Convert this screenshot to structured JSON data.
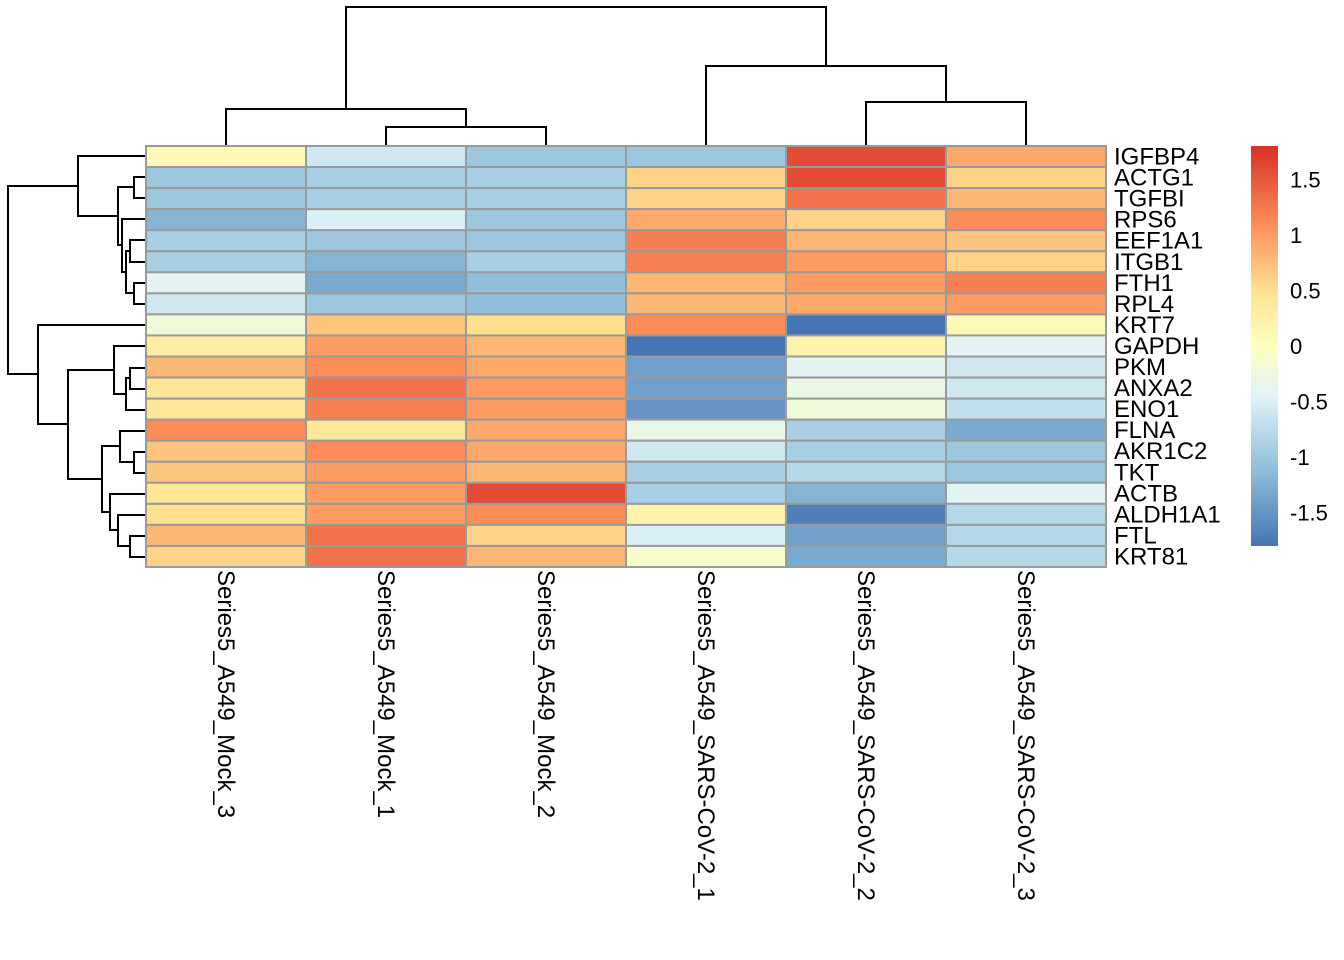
{
  "chart_data": {
    "type": "heatmap",
    "title": "",
    "columns": [
      "Series5_A549_Mock_3",
      "Series5_A549_Mock_1",
      "Series5_A549_Mock_2",
      "Series5_A549_SARS-CoV-2_1",
      "Series5_A549_SARS-CoV-2_2",
      "Series5_A549_SARS-CoV-2_3"
    ],
    "rows": [
      "IGFBP4",
      "ACTG1",
      "TGFBI",
      "RPS6",
      "EEF1A1",
      "ITGB1",
      "FTH1",
      "RPL4",
      "KRT7",
      "GAPDH",
      "PKM",
      "ANXA2",
      "ENO1",
      "FLNA",
      "AKR1C2",
      "TKT",
      "ACTB",
      "ALDH1A1",
      "FTL",
      "KRT81"
    ],
    "values": [
      [
        0.1,
        -0.6,
        -1.0,
        -1.0,
        1.6,
        0.9
      ],
      [
        -1.0,
        -0.9,
        -0.9,
        0.6,
        1.6,
        0.6
      ],
      [
        -1.0,
        -0.9,
        -0.9,
        0.6,
        1.3,
        0.8
      ],
      [
        -1.2,
        -0.5,
        -1.0,
        0.9,
        0.6,
        1.1
      ],
      [
        -0.9,
        -1.0,
        -1.0,
        1.2,
        0.8,
        0.7
      ],
      [
        -0.9,
        -1.2,
        -0.9,
        1.2,
        1.0,
        0.6
      ],
      [
        -0.4,
        -1.3,
        -1.1,
        0.8,
        1.0,
        1.2
      ],
      [
        -0.6,
        -1.0,
        -1.1,
        0.8,
        0.9,
        1.0
      ],
      [
        -0.2,
        0.7,
        0.5,
        1.1,
        -1.8,
        0.1
      ],
      [
        0.3,
        1.0,
        0.8,
        -1.8,
        0.2,
        -0.4
      ],
      [
        0.8,
        1.1,
        0.9,
        -1.4,
        -0.4,
        -0.6
      ],
      [
        0.4,
        1.3,
        1.0,
        -1.4,
        -0.3,
        -0.6
      ],
      [
        0.4,
        1.2,
        1.0,
        -1.5,
        -0.2,
        -0.7
      ],
      [
        1.1,
        0.4,
        0.9,
        -0.3,
        -0.9,
        -1.3
      ],
      [
        0.7,
        1.1,
        0.9,
        -0.6,
        -0.9,
        -1.0
      ],
      [
        0.7,
        1.0,
        0.8,
        -0.9,
        -0.8,
        -1.0
      ],
      [
        0.4,
        1.0,
        1.6,
        -0.9,
        -1.2,
        -0.4
      ],
      [
        0.5,
        1.0,
        1.1,
        0.2,
        -1.7,
        -0.8
      ],
      [
        0.8,
        1.3,
        0.6,
        -0.5,
        -1.4,
        -0.8
      ],
      [
        0.6,
        1.3,
        0.8,
        -0.1,
        -1.3,
        -0.8
      ]
    ],
    "legend": {
      "ticks": [
        "1.5",
        "1",
        "0.5",
        "0",
        "-0.5",
        "-1",
        "-1.5"
      ],
      "tick_values": [
        1.5,
        1,
        0.5,
        0,
        -0.5,
        -1,
        -1.5
      ],
      "range": [
        -1.8,
        1.8
      ],
      "colors": [
        "#4575B4",
        "#91BFDB",
        "#E0F3F8",
        "#FFFFBF",
        "#FEE090",
        "#FC8D59",
        "#D73027"
      ],
      "color_stops": [
        -1.8,
        -1.1,
        -0.45,
        0,
        0.5,
        1.1,
        1.8
      ]
    },
    "row_dendrogram": [
      {
        "children": [
          1,
          2
        ],
        "order": 1
      },
      {
        "children": [
          3,
          4
        ],
        "order": 2
      },
      {
        "children": [
          5,
          6
        ],
        "order": 3
      },
      {
        "children": [
          7,
          8
        ],
        "order": 4
      },
      {
        "children": [
          7,
          8,
          6
        ],
        "order": 5
      },
      {
        "children": [
          2,
          3
        ],
        "order": 6
      },
      {
        "children": [
          4,
          5,
          6,
          7,
          8
        ],
        "order": 7
      }
    ],
    "col_dendrogram": [
      {
        "children": [
          "Series5_A549_Mock_1",
          "Series5_A549_Mock_2"
        ]
      },
      {
        "children": [
          "Series5_A549_Mock_3",
          "Series5_A549_Mock_1+2"
        ]
      },
      {
        "children": [
          "Series5_A549_SARS-CoV-2_2",
          "Series5_A549_SARS-CoV-2_3"
        ]
      },
      {
        "children": [
          "Series5_A549_SARS-CoV-2_1",
          "Series5_A549_SARS-CoV-2_2+3"
        ]
      },
      {
        "children": [
          "Mock",
          "SARS-CoV-2"
        ]
      }
    ]
  }
}
